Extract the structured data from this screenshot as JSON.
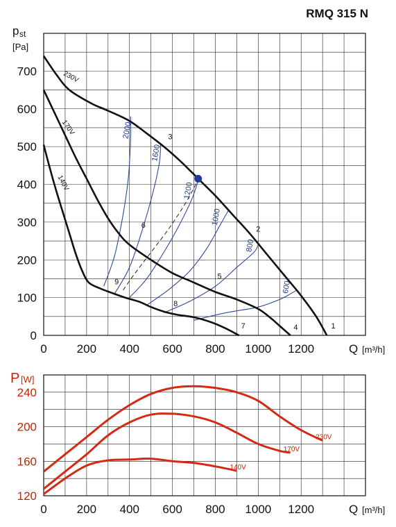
{
  "title": "RMQ 315 N",
  "chart_data": [
    {
      "type": "line",
      "title": "RMQ 315 N",
      "ylabel_main": "p",
      "ylabel_sub": "st",
      "yunit": "[Pa]",
      "xlabel": "Q",
      "xunit": "[m³/h]",
      "xlim": [
        0,
        1500
      ],
      "ylim": [
        0,
        800
      ],
      "x_ticks": [
        0,
        200,
        400,
        600,
        800,
        1000,
        1200
      ],
      "y_ticks": [
        0,
        100,
        200,
        300,
        400,
        500,
        600,
        700
      ],
      "grid": true,
      "series": [
        {
          "name": "230V",
          "color": "#111111",
          "x": [
            0,
            60,
            120,
            220,
            300,
            400,
            480,
            560,
            640,
            720,
            800,
            880,
            960,
            1040,
            1120,
            1200,
            1270,
            1320
          ],
          "y": [
            740,
            690,
            650,
            615,
            595,
            568,
            535,
            500,
            460,
            415,
            370,
            320,
            270,
            215,
            160,
            105,
            50,
            0
          ]
        },
        {
          "name": "170V",
          "color": "#111111",
          "x": [
            0,
            50,
            100,
            150,
            200,
            250,
            300,
            350,
            400,
            500,
            600,
            700,
            800,
            900,
            1000,
            1060,
            1100,
            1150
          ],
          "y": [
            650,
            590,
            530,
            470,
            415,
            360,
            310,
            270,
            240,
            200,
            165,
            140,
            115,
            95,
            70,
            45,
            25,
            0
          ]
        },
        {
          "name": "140V",
          "color": "#111111",
          "x": [
            0,
            30,
            60,
            90,
            120,
            150,
            180,
            210,
            260,
            320,
            380,
            450,
            500,
            560,
            620,
            700,
            780,
            850,
            910
          ],
          "y": [
            505,
            440,
            380,
            325,
            270,
            215,
            170,
            140,
            125,
            112,
            100,
            88,
            75,
            63,
            55,
            48,
            35,
            18,
            0
          ]
        }
      ],
      "rpm_curves": [
        {
          "label": "2000",
          "x": [
            280,
            330,
            370,
            395,
            405,
            405
          ],
          "y": [
            130,
            210,
            320,
            420,
            520,
            580
          ]
        },
        {
          "label": "1600",
          "x": [
            330,
            400,
            460,
            510,
            540,
            545
          ],
          "y": [
            110,
            180,
            280,
            380,
            460,
            510
          ]
        },
        {
          "label": "1200",
          "x": [
            400,
            480,
            560,
            630,
            690,
            720
          ],
          "y": [
            100,
            150,
            220,
            290,
            360,
            410
          ]
        },
        {
          "label": "1000",
          "x": [
            480,
            580,
            680,
            760,
            820,
            860
          ],
          "y": [
            80,
            120,
            170,
            230,
            290,
            330
          ]
        },
        {
          "label": "800",
          "x": [
            560,
            680,
            800,
            900,
            980,
            1000
          ],
          "y": [
            60,
            90,
            130,
            180,
            220,
            240
          ]
        },
        {
          "label": "600",
          "x": [
            700,
            850,
            1000,
            1100,
            1150,
            1180
          ],
          "y": [
            40,
            60,
            75,
            95,
            110,
            120
          ]
        }
      ],
      "operating_point": {
        "x": 720,
        "y": 415,
        "color": "#1f3a9a"
      },
      "system_curve": {
        "x": [
          370,
          420,
          500,
          580,
          650,
          700,
          720
        ],
        "y": [
          120,
          160,
          220,
          280,
          340,
          390,
          415
        ]
      },
      "point_labels": [
        {
          "label": "1",
          "x": 1340,
          "y": 18
        },
        {
          "label": "2",
          "x": 990,
          "y": 275
        },
        {
          "label": "3",
          "x": 580,
          "y": 520
        },
        {
          "label": "4",
          "x": 1165,
          "y": 15
        },
        {
          "label": "5",
          "x": 810,
          "y": 150
        },
        {
          "label": "6",
          "x": 455,
          "y": 285
        },
        {
          "label": "7",
          "x": 920,
          "y": 18
        },
        {
          "label": "8",
          "x": 605,
          "y": 77
        },
        {
          "label": "9",
          "x": 330,
          "y": 135
        }
      ]
    },
    {
      "type": "line",
      "ylabel": "P",
      "yunit": "[W]",
      "xlabel": "Q",
      "xunit": "[m³/h]",
      "xlim": [
        0,
        1500
      ],
      "ylim": [
        120,
        260
      ],
      "x_ticks": [
        0,
        200,
        400,
        600,
        800,
        1000,
        1200
      ],
      "y_ticks": [
        120,
        160,
        200,
        240
      ],
      "grid": true,
      "series": [
        {
          "name": "230V",
          "color": "#d42a14",
          "x": [
            0,
            100,
            200,
            300,
            400,
            500,
            600,
            700,
            800,
            900,
            1000,
            1100,
            1200,
            1300
          ],
          "y": [
            148,
            168,
            188,
            208,
            225,
            238,
            245,
            247,
            245,
            240,
            230,
            212,
            196,
            184
          ]
        },
        {
          "name": "170V",
          "color": "#d42a14",
          "x": [
            0,
            100,
            200,
            300,
            400,
            500,
            600,
            700,
            800,
            900,
            1000,
            1100,
            1150
          ],
          "y": [
            128,
            148,
            168,
            190,
            205,
            214,
            215,
            212,
            205,
            193,
            180,
            172,
            170
          ]
        },
        {
          "name": "140V",
          "color": "#d42a14",
          "x": [
            0,
            100,
            200,
            300,
            400,
            500,
            600,
            700,
            800,
            900
          ],
          "y": [
            122,
            140,
            155,
            161,
            162,
            163,
            160,
            158,
            154,
            149
          ]
        }
      ]
    }
  ]
}
